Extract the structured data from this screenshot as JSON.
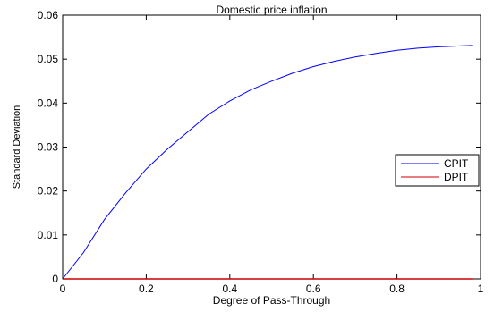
{
  "chart_data": {
    "type": "line",
    "title": "Domestic price inflation",
    "xlabel": "Degree of Pass-Through",
    "ylabel": "Standard Deviation",
    "xlim": [
      0,
      1
    ],
    "ylim": [
      0,
      0.06
    ],
    "x_ticks": [
      "0",
      "0.2",
      "0.4",
      "0.6",
      "0.8",
      "1"
    ],
    "y_ticks": [
      "0",
      "0.01",
      "0.02",
      "0.03",
      "0.04",
      "0.05",
      "0.06"
    ],
    "grid": false,
    "legend_position": "right",
    "series": [
      {
        "name": "CPIT",
        "color": "#0000ff",
        "x": [
          0,
          0.05,
          0.1,
          0.15,
          0.2,
          0.25,
          0.3,
          0.35,
          0.4,
          0.45,
          0.5,
          0.55,
          0.6,
          0.65,
          0.7,
          0.75,
          0.8,
          0.85,
          0.9,
          0.95,
          0.98
        ],
        "y": [
          0,
          0.006,
          0.0135,
          0.0195,
          0.025,
          0.0295,
          0.0335,
          0.0375,
          0.0405,
          0.043,
          0.045,
          0.0468,
          0.0483,
          0.0495,
          0.0505,
          0.0513,
          0.052,
          0.0525,
          0.0528,
          0.053,
          0.0531
        ]
      },
      {
        "name": "DPIT",
        "color": "#cc0000",
        "x": [
          0,
          0.98
        ],
        "y": [
          0,
          0
        ]
      }
    ]
  }
}
